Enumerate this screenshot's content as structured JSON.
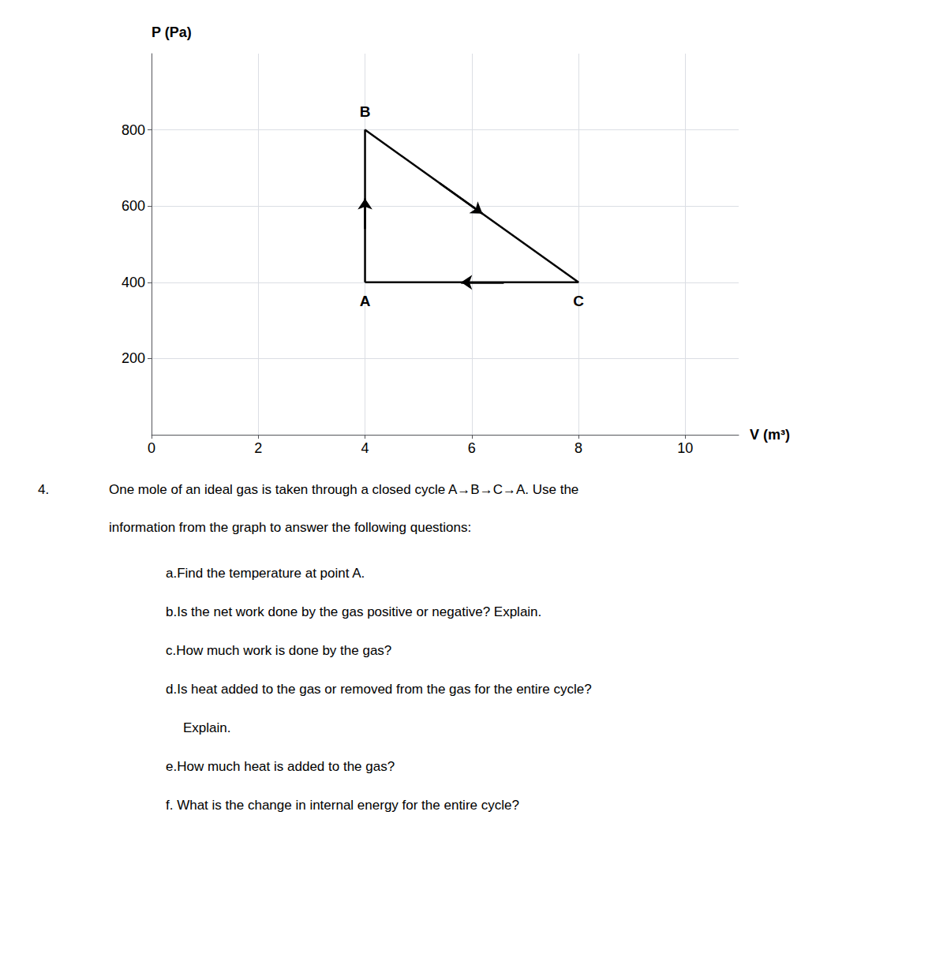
{
  "chart_data": {
    "type": "line",
    "x_label": "V (m³)",
    "y_label": "P (Pa)",
    "x": [
      4,
      4,
      8,
      4
    ],
    "values": [
      400,
      800,
      400,
      400
    ],
    "point_labels": [
      "A",
      "B",
      "C",
      null
    ],
    "color": "#000000",
    "xlim": [
      0,
      11
    ],
    "xticks": [
      0,
      2,
      4,
      6,
      8,
      10
    ],
    "ylim": [
      0,
      1000
    ],
    "yticks": [
      200,
      400,
      600,
      800
    ],
    "grid": true,
    "annotations": {
      "number": "4.",
      "lines": [
        "One mole of an ideal gas is taken through a closed cycle A→B→C→A. Use the",
        "information from the graph to answer the following questions:"
      ],
      "items": [
        "a.Find the temperature at point A.",
        "b.Is the net work done by the gas positive or negative? Explain.",
        "c.How much work is done by the gas?",
        "d.Is heat added to the gas or removed from the gas for the entire cycle?",
        "Explain.",
        "e.How much heat is added to the gas?",
        "f. What is the change in internal energy for the entire cycle?"
      ]
    }
  }
}
